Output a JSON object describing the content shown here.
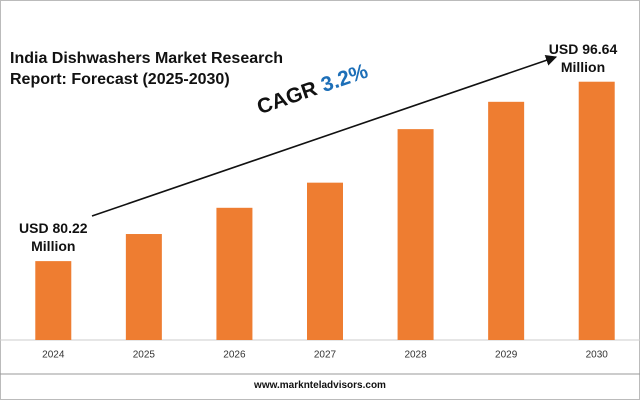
{
  "chart_data": {
    "type": "bar",
    "title": "India Dishwashers Market Research Report: Forecast (2025-2030)",
    "categories": [
      "2024",
      "2025",
      "2026",
      "2027",
      "2028",
      "2029",
      "2030"
    ],
    "values": [
      80.22,
      82.7,
      85.1,
      87.4,
      92.3,
      94.8,
      96.64
    ],
    "value_labels": [
      "USD 80.22 Million",
      null,
      null,
      null,
      null,
      null,
      "USD 96.64 Million"
    ],
    "color": "#ee7d31",
    "ylim": [
      73,
      100
    ],
    "annotation": {
      "text": "CAGR",
      "value": "3.2%"
    },
    "source": "www.marknteladvisors.com"
  }
}
